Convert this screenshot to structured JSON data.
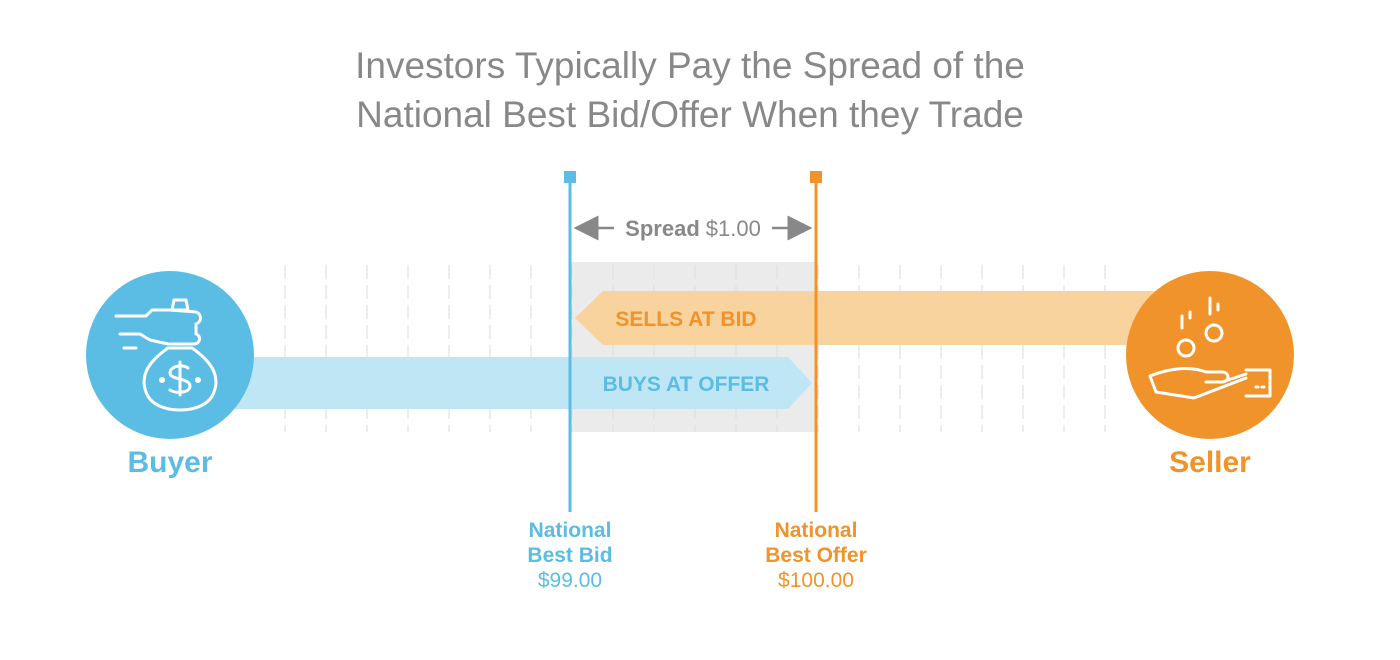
{
  "title": {
    "line1": "Investors Typically Pay the Spread of the",
    "line2": "National Best Bid/Offer When they Trade"
  },
  "spread": {
    "label": "Spread",
    "value": "$1.00"
  },
  "buyer": {
    "label": "Buyer",
    "color": "#5bbde4",
    "icon": "hand-money-bag-icon",
    "arrow_label": "BUYS AT OFFER",
    "arrow_color": "#bfe6f5"
  },
  "seller": {
    "label": "Seller",
    "color": "#f0932a",
    "icon": "hand-coins-icon",
    "arrow_label": "SELLS AT BID",
    "arrow_color": "#f8d39e"
  },
  "bid": {
    "label_line1": "National",
    "label_line2": "Best Bid",
    "price": "$99.00",
    "color": "#5bbde4"
  },
  "offer": {
    "label_line1": "National",
    "label_line2": "Best Offer",
    "price": "$100.00",
    "color": "#f0932a"
  },
  "colors": {
    "title": "#888888",
    "spread_zone": "#ebebeb",
    "tick": "#dddddd",
    "spread_text": "#888888"
  }
}
